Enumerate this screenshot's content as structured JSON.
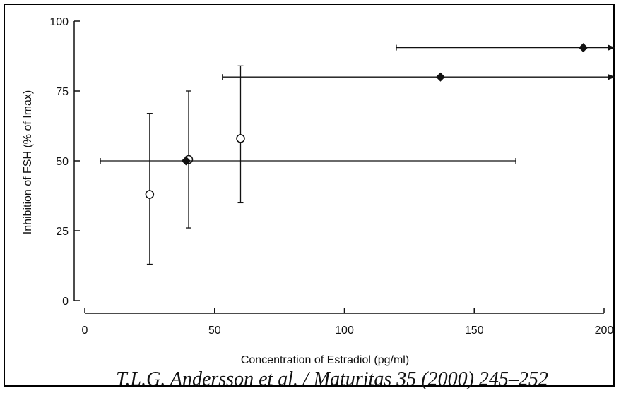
{
  "chart_data": {
    "type": "scatter",
    "xlabel": "Concentration of Estradiol (pg/ml)",
    "ylabel": "Inhibition of FSH (% of Imax)",
    "xlim": [
      0,
      200
    ],
    "ylim": [
      0,
      100
    ],
    "x_ticks": [
      "0",
      "50",
      "100",
      "150",
      "200"
    ],
    "y_ticks": [
      "0",
      "25",
      "50",
      "75",
      "100"
    ],
    "grid": false,
    "series": [
      {
        "marker": "open-circle",
        "points": [
          {
            "x": 25,
            "y": 38,
            "y_low": 13,
            "y_high": 67
          },
          {
            "x": 40,
            "y": 50.5,
            "y_low": 26,
            "y_high": 75
          },
          {
            "x": 60,
            "y": 58,
            "y_low": 35,
            "y_high": 84
          }
        ]
      },
      {
        "marker": "filled-diamond",
        "points": [
          {
            "x": 39,
            "y": 50,
            "x_low": 6,
            "x_high": 166
          },
          {
            "x": 137,
            "y": 80,
            "x_low": 53,
            "x_high": 200,
            "x_open_ended": true
          },
          {
            "x": 192,
            "y": 90.5,
            "x_low": 120,
            "x_high": 200,
            "x_open_ended": true
          }
        ]
      }
    ],
    "annotation": "T.L.G. Andersson et al. / Maturitas 35 (2000) 245–252"
  }
}
